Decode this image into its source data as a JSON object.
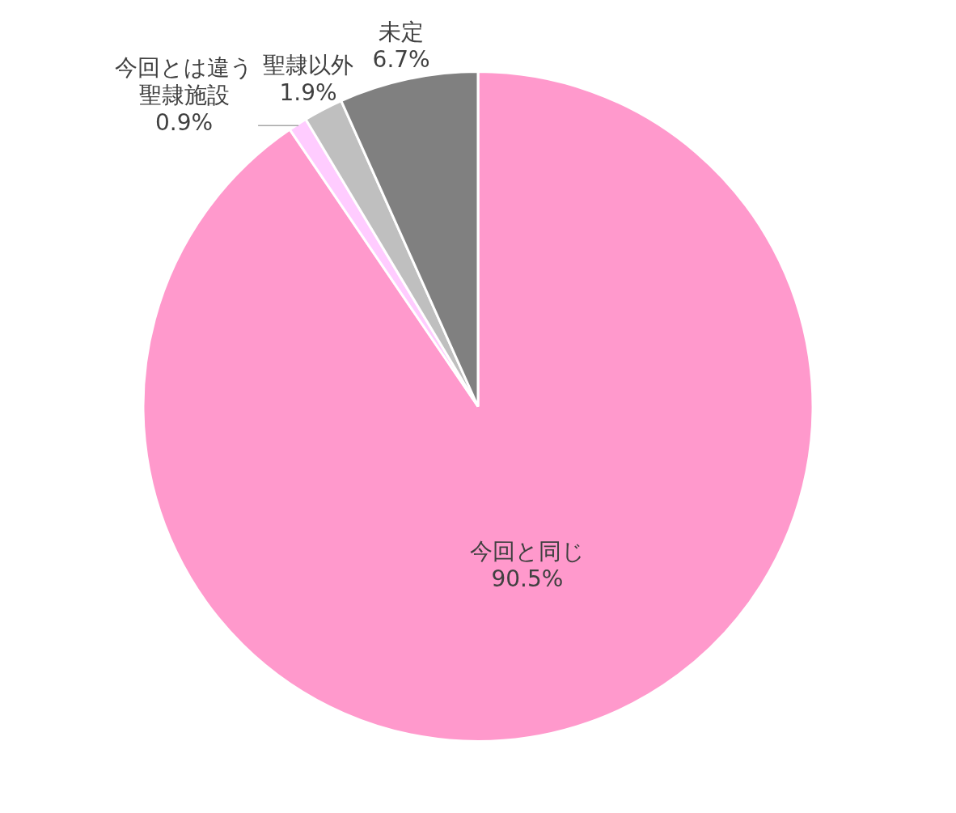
{
  "chart_data": {
    "type": "pie",
    "categories": [
      "今回と同じ",
      "今回とは違う聖隷施設",
      "聖隷以外",
      "未定"
    ],
    "values": [
      90.5,
      0.9,
      1.9,
      6.7
    ],
    "colors": [
      "#ff99cc",
      "#ffccff",
      "#bfbfbf",
      "#808080"
    ],
    "value_labels": [
      "90.5%",
      "0.9%",
      "1.9%",
      "6.7%"
    ],
    "legend": false
  }
}
